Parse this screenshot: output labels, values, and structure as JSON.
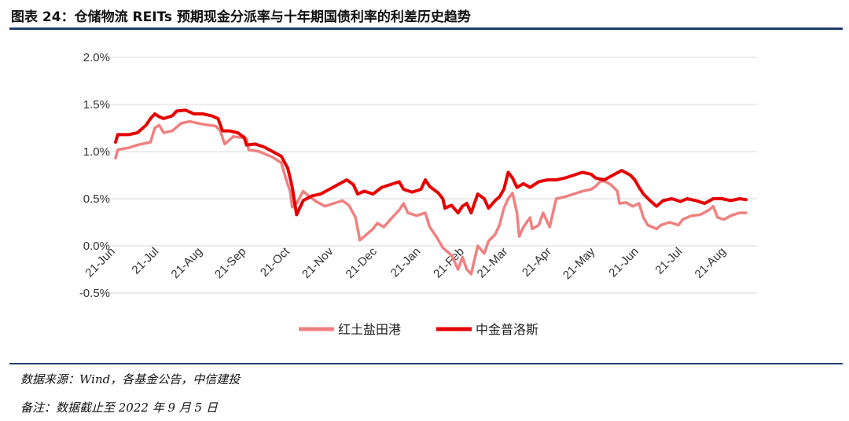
{
  "figure": {
    "title": "图表 24：仓储物流 REITs 预期现金分派率与十年期国债利率的利差历史趋势",
    "source": "数据来源：Wind，各基金公告，中信建投",
    "note": "备注：数据截止至 2022 年 9 月 5 日"
  },
  "chart_data": {
    "type": "line",
    "title": "",
    "xlabel": "",
    "ylabel": "",
    "ylim": [
      -0.5,
      2.0
    ],
    "yticks": [
      "-0.5%",
      "0.0%",
      "0.5%",
      "1.0%",
      "1.5%",
      "2.0%"
    ],
    "ytick_values": [
      -0.5,
      0.0,
      0.5,
      1.0,
      1.5,
      2.0
    ],
    "xlim": [
      0,
      14.8
    ],
    "x_tick_labels": [
      "21-Jun",
      "21-Jul",
      "21-Aug",
      "21-Sep",
      "21-Oct",
      "21-Nov",
      "21-Dec",
      "21-Jan",
      "21-Feb",
      "21-Mar",
      "21-Apr",
      "21-May",
      "21-Jun",
      "21-Jul",
      "21-Aug"
    ],
    "x_tick_values": [
      0,
      1,
      2,
      3,
      4,
      5,
      6,
      7,
      8,
      9,
      10,
      11,
      12,
      13,
      14
    ],
    "grid": "horizontal",
    "legend_position": "bottom",
    "series": [
      {
        "name": "红土盐田港",
        "color": "#f08080",
        "points": [
          [
            0.0,
            0.93
          ],
          [
            0.05,
            1.02
          ],
          [
            0.3,
            1.04
          ],
          [
            0.5,
            1.07
          ],
          [
            0.8,
            1.1
          ],
          [
            0.9,
            1.25
          ],
          [
            1.0,
            1.28
          ],
          [
            1.1,
            1.2
          ],
          [
            1.3,
            1.22
          ],
          [
            1.5,
            1.3
          ],
          [
            1.7,
            1.32
          ],
          [
            2.0,
            1.29
          ],
          [
            2.3,
            1.27
          ],
          [
            2.4,
            1.22
          ],
          [
            2.5,
            1.08
          ],
          [
            2.7,
            1.16
          ],
          [
            3.0,
            1.14
          ],
          [
            3.05,
            1.02
          ],
          [
            3.3,
            1.0
          ],
          [
            3.6,
            0.94
          ],
          [
            3.8,
            0.88
          ],
          [
            3.9,
            0.72
          ],
          [
            4.0,
            0.58
          ],
          [
            4.05,
            0.41
          ],
          [
            4.15,
            0.45
          ],
          [
            4.3,
            0.58
          ],
          [
            4.45,
            0.52
          ],
          [
            4.6,
            0.47
          ],
          [
            4.8,
            0.42
          ],
          [
            5.0,
            0.45
          ],
          [
            5.2,
            0.48
          ],
          [
            5.35,
            0.43
          ],
          [
            5.5,
            0.3
          ],
          [
            5.6,
            0.06
          ],
          [
            5.75,
            0.12
          ],
          [
            5.9,
            0.18
          ],
          [
            6.0,
            0.24
          ],
          [
            6.15,
            0.2
          ],
          [
            6.3,
            0.28
          ],
          [
            6.5,
            0.38
          ],
          [
            6.6,
            0.45
          ],
          [
            6.7,
            0.35
          ],
          [
            6.9,
            0.32
          ],
          [
            7.1,
            0.35
          ],
          [
            7.2,
            0.2
          ],
          [
            7.35,
            0.1
          ],
          [
            7.5,
            -0.02
          ],
          [
            7.7,
            -0.1
          ],
          [
            7.85,
            -0.25
          ],
          [
            7.95,
            -0.12
          ],
          [
            8.05,
            -0.25
          ],
          [
            8.15,
            -0.3
          ],
          [
            8.3,
            0.0
          ],
          [
            8.45,
            -0.08
          ],
          [
            8.55,
            0.05
          ],
          [
            8.7,
            0.12
          ],
          [
            8.8,
            0.22
          ],
          [
            8.9,
            0.4
          ],
          [
            9.0,
            0.5
          ],
          [
            9.1,
            0.56
          ],
          [
            9.2,
            0.35
          ],
          [
            9.25,
            0.1
          ],
          [
            9.35,
            0.2
          ],
          [
            9.5,
            0.3
          ],
          [
            9.55,
            0.18
          ],
          [
            9.7,
            0.22
          ],
          [
            9.8,
            0.35
          ],
          [
            9.95,
            0.2
          ],
          [
            10.0,
            0.3
          ],
          [
            10.1,
            0.5
          ],
          [
            10.3,
            0.52
          ],
          [
            10.5,
            0.55
          ],
          [
            10.7,
            0.58
          ],
          [
            10.9,
            0.6
          ],
          [
            11.0,
            0.63
          ],
          [
            11.1,
            0.68
          ],
          [
            11.2,
            0.69
          ],
          [
            11.35,
            0.65
          ],
          [
            11.5,
            0.58
          ],
          [
            11.55,
            0.45
          ],
          [
            11.7,
            0.46
          ],
          [
            11.85,
            0.42
          ],
          [
            12.0,
            0.45
          ],
          [
            12.1,
            0.3
          ],
          [
            12.2,
            0.22
          ],
          [
            12.4,
            0.18
          ],
          [
            12.5,
            0.22
          ],
          [
            12.7,
            0.25
          ],
          [
            12.9,
            0.22
          ],
          [
            13.0,
            0.28
          ],
          [
            13.2,
            0.32
          ],
          [
            13.4,
            0.33
          ],
          [
            13.6,
            0.38
          ],
          [
            13.7,
            0.42
          ],
          [
            13.8,
            0.3
          ],
          [
            13.95,
            0.28
          ],
          [
            14.1,
            0.32
          ],
          [
            14.3,
            0.35
          ],
          [
            14.45,
            0.35
          ]
        ]
      },
      {
        "name": "中金普洛斯",
        "color": "#e60000",
        "points": [
          [
            0.0,
            1.1
          ],
          [
            0.05,
            1.18
          ],
          [
            0.3,
            1.18
          ],
          [
            0.5,
            1.2
          ],
          [
            0.7,
            1.28
          ],
          [
            0.8,
            1.35
          ],
          [
            0.9,
            1.4
          ],
          [
            1.0,
            1.37
          ],
          [
            1.1,
            1.35
          ],
          [
            1.3,
            1.38
          ],
          [
            1.4,
            1.43
          ],
          [
            1.6,
            1.44
          ],
          [
            1.8,
            1.4
          ],
          [
            2.0,
            1.4
          ],
          [
            2.2,
            1.38
          ],
          [
            2.35,
            1.35
          ],
          [
            2.45,
            1.22
          ],
          [
            2.6,
            1.22
          ],
          [
            2.8,
            1.2
          ],
          [
            2.95,
            1.15
          ],
          [
            3.0,
            1.07
          ],
          [
            3.2,
            1.08
          ],
          [
            3.4,
            1.05
          ],
          [
            3.6,
            1.0
          ],
          [
            3.8,
            0.95
          ],
          [
            3.95,
            0.82
          ],
          [
            4.05,
            0.62
          ],
          [
            4.15,
            0.33
          ],
          [
            4.3,
            0.48
          ],
          [
            4.5,
            0.53
          ],
          [
            4.7,
            0.55
          ],
          [
            4.9,
            0.6
          ],
          [
            5.1,
            0.65
          ],
          [
            5.3,
            0.7
          ],
          [
            5.45,
            0.65
          ],
          [
            5.55,
            0.55
          ],
          [
            5.7,
            0.58
          ],
          [
            5.9,
            0.55
          ],
          [
            6.1,
            0.62
          ],
          [
            6.3,
            0.65
          ],
          [
            6.5,
            0.68
          ],
          [
            6.6,
            0.6
          ],
          [
            6.8,
            0.57
          ],
          [
            7.0,
            0.6
          ],
          [
            7.1,
            0.7
          ],
          [
            7.2,
            0.63
          ],
          [
            7.4,
            0.56
          ],
          [
            7.5,
            0.5
          ],
          [
            7.55,
            0.4
          ],
          [
            7.7,
            0.43
          ],
          [
            7.85,
            0.35
          ],
          [
            7.95,
            0.42
          ],
          [
            8.05,
            0.45
          ],
          [
            8.15,
            0.35
          ],
          [
            8.3,
            0.55
          ],
          [
            8.45,
            0.5
          ],
          [
            8.55,
            0.4
          ],
          [
            8.7,
            0.48
          ],
          [
            8.8,
            0.52
          ],
          [
            8.9,
            0.6
          ],
          [
            9.0,
            0.78
          ],
          [
            9.1,
            0.72
          ],
          [
            9.2,
            0.62
          ],
          [
            9.35,
            0.66
          ],
          [
            9.5,
            0.62
          ],
          [
            9.7,
            0.68
          ],
          [
            9.9,
            0.7
          ],
          [
            10.1,
            0.7
          ],
          [
            10.3,
            0.72
          ],
          [
            10.5,
            0.75
          ],
          [
            10.7,
            0.78
          ],
          [
            10.9,
            0.76
          ],
          [
            11.0,
            0.72
          ],
          [
            11.2,
            0.7
          ],
          [
            11.4,
            0.75
          ],
          [
            11.6,
            0.8
          ],
          [
            11.8,
            0.75
          ],
          [
            11.9,
            0.7
          ],
          [
            12.0,
            0.62
          ],
          [
            12.1,
            0.55
          ],
          [
            12.25,
            0.48
          ],
          [
            12.4,
            0.42
          ],
          [
            12.55,
            0.48
          ],
          [
            12.75,
            0.5
          ],
          [
            12.95,
            0.47
          ],
          [
            13.1,
            0.5
          ],
          [
            13.3,
            0.48
          ],
          [
            13.5,
            0.45
          ],
          [
            13.7,
            0.5
          ],
          [
            13.9,
            0.5
          ],
          [
            14.1,
            0.48
          ],
          [
            14.3,
            0.5
          ],
          [
            14.45,
            0.49
          ]
        ]
      }
    ]
  }
}
